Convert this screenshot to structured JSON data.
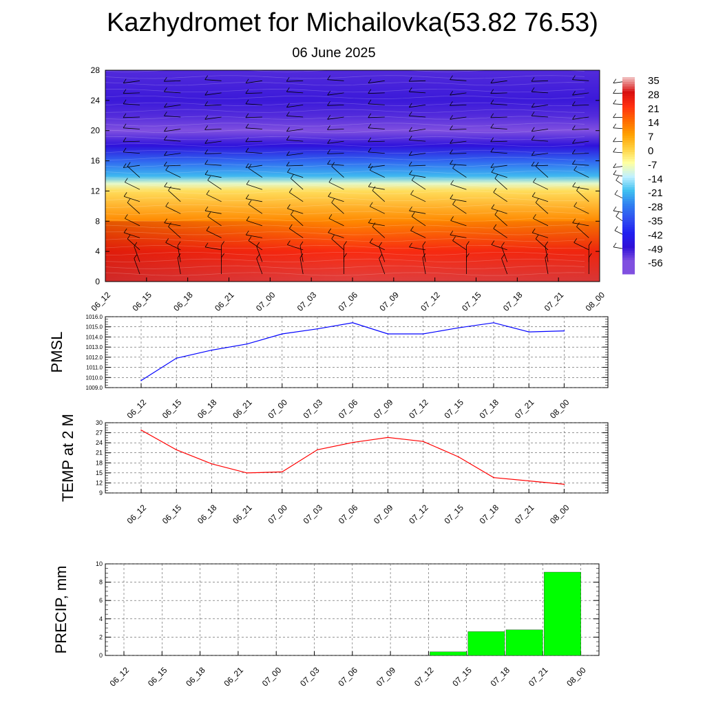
{
  "title": "Kazhydromet for Michailovka(53.82 76.53)",
  "subtitle": "06 June 2025",
  "chart_data": [
    {
      "type": "heatmap",
      "name": "temperature-cross-section",
      "x_ticks": [
        "06_12",
        "06_15",
        "06_18",
        "06_21",
        "07_00",
        "07_03",
        "07_06",
        "07_09",
        "07_12",
        "07_15",
        "07_18",
        "07_21",
        "08_00"
      ],
      "y_ticks": [
        0,
        4,
        8,
        12,
        16,
        20,
        24,
        28
      ],
      "ylim": [
        0,
        28
      ],
      "colorbar_labels": [
        35,
        28,
        21,
        14,
        7,
        0,
        -7,
        -14,
        -21,
        -28,
        -35,
        -42,
        -49,
        -56
      ],
      "colorbar_colors": [
        "#f0b8b8",
        "#d81010",
        "#ff3010",
        "#ff6a00",
        "#ffa000",
        "#ffd040",
        "#ffffa0",
        "#c0f0ff",
        "#40c0f0",
        "#3080f0",
        "#3050f0",
        "#2020f0",
        "#3010d8",
        "#8050e0"
      ],
      "temperature_profile": [
        {
          "height": 0,
          "value": 30
        },
        {
          "height": 4,
          "value": 22
        },
        {
          "height": 8,
          "value": 10
        },
        {
          "height": 12,
          "value": -2
        },
        {
          "height": 13,
          "value": -10
        },
        {
          "height": 14,
          "value": -22
        },
        {
          "height": 16,
          "value": -32
        },
        {
          "height": 18,
          "value": -48
        },
        {
          "height": 20,
          "value": -58
        },
        {
          "height": 22,
          "value": -52
        },
        {
          "height": 24,
          "value": -50
        },
        {
          "height": 28,
          "value": -52
        }
      ]
    },
    {
      "type": "line",
      "name": "pmsl",
      "ylabel": "PMSL",
      "categories": [
        "06_12",
        "06_15",
        "06_18",
        "06_21",
        "07_00",
        "07_03",
        "07_06",
        "07_09",
        "07_12",
        "07_15",
        "07_18",
        "07_21",
        "08_00"
      ],
      "values": [
        1009.7,
        1011.9,
        1012.7,
        1013.3,
        1014.3,
        1014.8,
        1015.4,
        1014.3,
        1014.3,
        1014.9,
        1015.4,
        1014.5,
        1014.6
      ],
      "ylim": [
        1009.0,
        1016.0
      ],
      "y_ticks": [
        "1009.0",
        "1010.0",
        "1011.0",
        "1012.0",
        "1013.0",
        "1014.0",
        "1015.0",
        "1016.0"
      ],
      "color": "#0000ff"
    },
    {
      "type": "line",
      "name": "temp-2m",
      "ylabel": "TEMP at 2 M",
      "categories": [
        "06_12",
        "06_15",
        "06_18",
        "06_21",
        "07_00",
        "07_03",
        "07_06",
        "07_09",
        "07_12",
        "07_15",
        "07_18",
        "07_21",
        "08_00"
      ],
      "values": [
        27.8,
        21.9,
        17.7,
        15.0,
        15.3,
        21.9,
        24.1,
        25.6,
        24.4,
        19.8,
        13.6,
        12.6,
        11.6
      ],
      "ylim": [
        9,
        30
      ],
      "y_ticks": [
        "9",
        "12",
        "15",
        "18",
        "21",
        "24",
        "27",
        "30"
      ],
      "color": "#ff0000"
    },
    {
      "type": "bar",
      "name": "precip",
      "ylabel": "PRECIP, mm",
      "categories": [
        "06_12",
        "06_15",
        "06_18",
        "06_21",
        "07_00",
        "07_03",
        "07_06",
        "07_09",
        "07_12",
        "07_15",
        "07_18",
        "07_21",
        "08_00"
      ],
      "values": [
        0,
        0,
        0,
        0,
        0,
        0,
        0,
        0,
        0,
        0.4,
        2.6,
        2.8,
        9.1
      ],
      "ylim": [
        0,
        10
      ],
      "y_ticks": [
        "0",
        "2",
        "4",
        "6",
        "8",
        "10"
      ],
      "color": "#00ff00"
    }
  ]
}
